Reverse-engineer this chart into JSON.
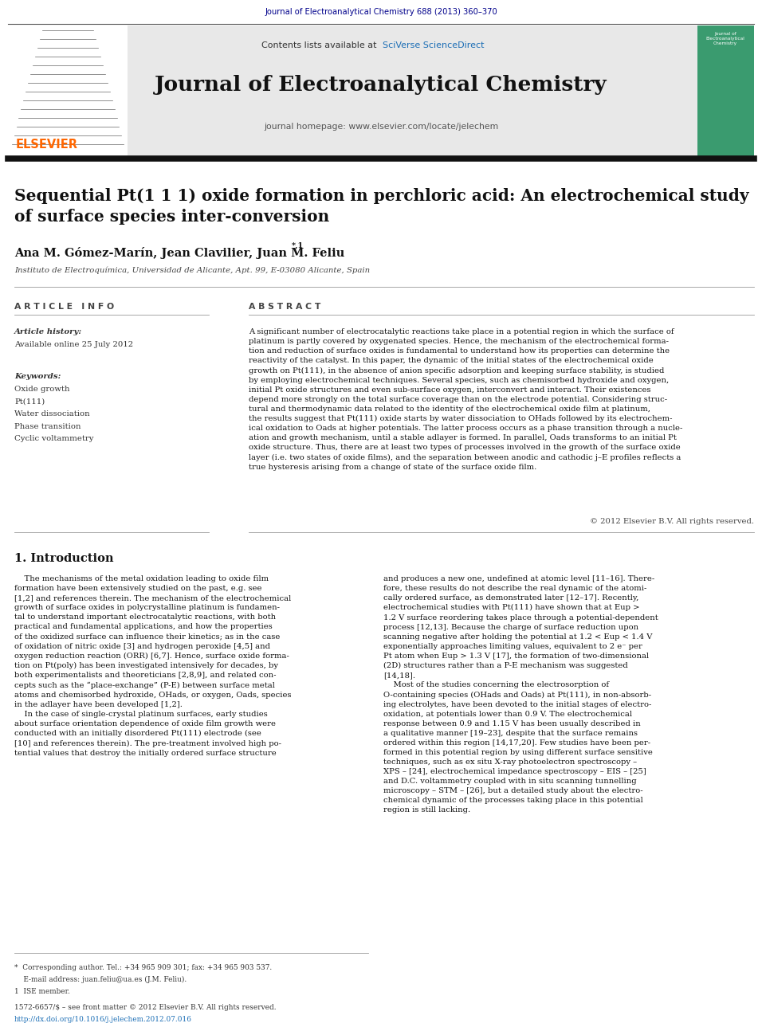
{
  "page_width": 9.92,
  "page_height": 13.23,
  "background": "#ffffff",
  "top_journal_ref": "Journal of Electroanalytical Chemistry 688 (2013) 360–370",
  "top_journal_ref_color": "#00008B",
  "header_bg": "#e8e8e8",
  "contents_text": "Contents lists available at ",
  "sciverse_text": "SciVerse ScienceDirect",
  "sciverse_color": "#1a6db5",
  "journal_name": "Journal of Electroanalytical Chemistry",
  "journal_homepage": "journal homepage: www.elsevier.com/locate/jelechem",
  "elsevier_color": "#ff6600",
  "article_title": "Sequential Pt(1 1 1) oxide formation in perchloric acid: An electrochemical study\nof surface species inter-conversion",
  "authors": "Ana M. Gómez-Marín, Jean Clavilier, Juan M. Feliu",
  "author_superscript": "*,1",
  "affiliation": "Instituto de Electroquímica, Universidad de Alicante, Apt. 99, E-03080 Alicante, Spain",
  "article_info_header": "A R T I C L E   I N F O",
  "abstract_header": "A B S T R A C T",
  "article_history_label": "Article history:",
  "available_online": "Available online 25 July 2012",
  "keywords_label": "Keywords:",
  "keywords": [
    "Oxide growth",
    "Pt(111)",
    "Water dissociation",
    "Phase transition",
    "Cyclic voltammetry"
  ],
  "abstract_text": "A significant number of electrocatalytic reactions take place in a potential region in which the surface of\nplatinum is partly covered by oxygenated species. Hence, the mechanism of the electrochemical forma-\ntion and reduction of surface oxides is fundamental to understand how its properties can determine the\nreactivity of the catalyst. In this paper, the dynamic of the initial states of the electrochemical oxide\ngrowth on Pt(111), in the absence of anion specific adsorption and keeping surface stability, is studied\nby employing electrochemical techniques. Several species, such as chemisorbed hydroxide and oxygen,\ninitial Pt oxide structures and even sub-surface oxygen, interconvert and interact. Their existences\ndepend more strongly on the total surface coverage than on the electrode potential. Considering struc-\ntural and thermodynamic data related to the identity of the electrochemical oxide film at platinum,\nthe results suggest that Pt(111) oxide starts by water dissociation to OHads followed by its electrochem-\nical oxidation to Oads at higher potentials. The latter process occurs as a phase transition through a nucle-\nation and growth mechanism, until a stable adlayer is formed. In parallel, Oads transforms to an initial Pt\noxide structure. Thus, there are at least two types of processes involved in the growth of the surface oxide\nlayer (i.e. two states of oxide films), and the separation between anodic and cathodic j–E profiles reflects a\ntrue hysteresis arising from a change of state of the surface oxide film.",
  "copyright": "© 2012 Elsevier B.V. All rights reserved.",
  "intro_title": "1. Introduction",
  "intro_col1": "    The mechanisms of the metal oxidation leading to oxide film\nformation have been extensively studied on the past, e.g. see\n[1,2] and references therein. The mechanism of the electrochemical\ngrowth of surface oxides in polycrystalline platinum is fundamen-\ntal to understand important electrocatalytic reactions, with both\npractical and fundamental applications, and how the properties\nof the oxidized surface can influence their kinetics; as in the case\nof oxidation of nitric oxide [3] and hydrogen peroxide [4,5] and\noxygen reduction reaction (ORR) [6,7]. Hence, surface oxide forma-\ntion on Pt(poly) has been investigated intensively for decades, by\nboth experimentalists and theoreticians [2,8,9], and related con-\ncepts such as the “place-exchange” (P-E) between surface metal\natoms and chemisorbed hydroxide, OHads, or oxygen, Oads, species\nin the adlayer have been developed [1,2].\n    In the case of single-crystal platinum surfaces, early studies\nabout surface orientation dependence of oxide film growth were\nconducted with an initially disordered Pt(111) electrode (see\n[10] and references therein). The pre-treatment involved high po-\ntential values that destroy the initially ordered surface structure",
  "intro_col2": "and produces a new one, undefined at atomic level [11–16]. There-\nfore, these results do not describe the real dynamic of the atomi-\ncally ordered surface, as demonstrated later [12–17]. Recently,\nelectrochemical studies with Pt(111) have shown that at Eup >\n1.2 V surface reordering takes place through a potential-dependent\nprocess [12,13]. Because the charge of surface reduction upon\nscanning negative after holding the potential at 1.2 < Eup < 1.4 V\nexponentially approaches limiting values, equivalent to 2 e⁻ per\nPt atom when Eup > 1.3 V [17], the formation of two-dimensional\n(2D) structures rather than a P-E mechanism was suggested\n[14,18].\n    Most of the studies concerning the electrosorption of\nO-containing species (OHads and Oads) at Pt(111), in non-absorb-\ning electrolytes, have been devoted to the initial stages of electro-\noxidation, at potentials lower than 0.9 V. The electrochemical\nresponse between 0.9 and 1.15 V has been usually described in\na qualitative manner [19–23], despite that the surface remains\nordered within this region [14,17,20]. Few studies have been per-\nformed in this potential region by using different surface sensitive\ntechniques, such as ex situ X-ray photoelectron spectroscopy –\nXPS – [24], electrochemical impedance spectroscopy – EIS – [25]\nand D.C. voltammetry coupled with in situ scanning tunnelling\nmicroscopy – STM – [26], but a detailed study about the electro-\nchemical dynamic of the processes taking place in this potential\nregion is still lacking.",
  "footer_text1": "*  Corresponding author. Tel.: +34 965 909 301; fax: +34 965 903 537.",
  "footer_text2": "    E-mail address: juan.feliu@ua.es (J.M. Feliu).",
  "footer_text3": "1  ISE member.",
  "issn_text": "1572-6657/$ – see front matter © 2012 Elsevier B.V. All rights reserved.",
  "doi_text": "http://dx.doi.org/10.1016/j.jelechem.2012.07.016",
  "doi_color": "#1a6db5"
}
